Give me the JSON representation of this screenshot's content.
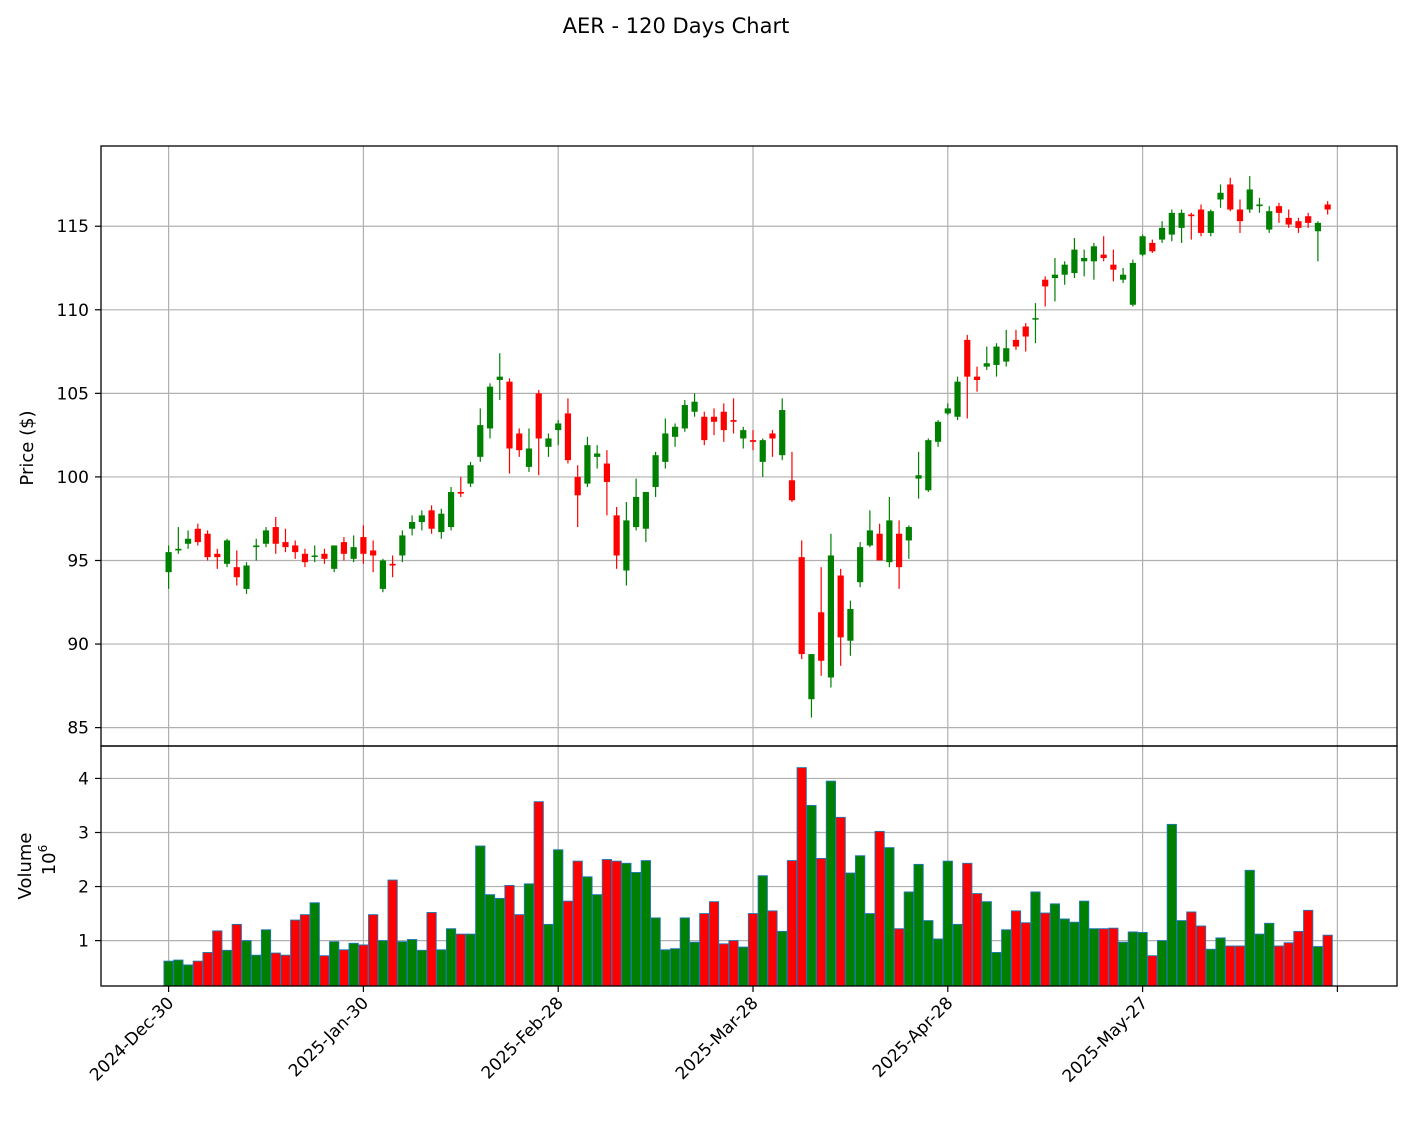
{
  "chart_data": {
    "type": "candlestick",
    "title": "AER - 120 Days Chart",
    "price_panel": {
      "ylabel": "Price ($)",
      "ylim": [
        83.9,
        119.8
      ],
      "yticks": [
        85,
        90,
        95,
        100,
        105,
        110,
        115
      ],
      "grid": true
    },
    "volume_panel": {
      "ylabel": "Volume",
      "scale_label": "10",
      "scale_exp": "6",
      "ylim": [
        0.16,
        4.6
      ],
      "yticks": [
        1,
        2,
        3,
        4
      ],
      "grid": true
    },
    "x_tick_labels": [
      {
        "index": 0,
        "label": "2024-Dec-30"
      },
      {
        "index": 20,
        "label": "2025-Jan-30"
      },
      {
        "index": 40,
        "label": "2025-Feb-28"
      },
      {
        "index": 60,
        "label": "2025-Mar-28"
      },
      {
        "index": 80,
        "label": "2025-Apr-28"
      },
      {
        "index": 100,
        "label": "2025-May-27"
      },
      {
        "index": 120,
        "label": ""
      }
    ],
    "colors": {
      "up": "#008000",
      "down": "#ff0000",
      "volume_edge": "#1f77b4",
      "grid": "#b0b0b0"
    },
    "ohlc": [
      [
        94.3,
        95.9,
        93.3,
        95.5
      ],
      [
        95.6,
        97.0,
        95.4,
        95.7
      ],
      [
        96.0,
        96.8,
        95.7,
        96.3
      ],
      [
        96.9,
        97.2,
        95.9,
        96.1
      ],
      [
        96.6,
        96.8,
        95.0,
        95.2
      ],
      [
        95.4,
        95.7,
        94.5,
        95.2
      ],
      [
        94.8,
        96.3,
        94.6,
        96.2
      ],
      [
        94.6,
        95.6,
        93.5,
        94.0
      ],
      [
        93.3,
        94.9,
        93.0,
        94.7
      ],
      [
        95.8,
        96.3,
        95.0,
        95.9
      ],
      [
        96.0,
        97.0,
        95.8,
        96.8
      ],
      [
        97.0,
        97.6,
        95.4,
        96.0
      ],
      [
        96.1,
        96.9,
        95.5,
        95.8
      ],
      [
        95.9,
        96.2,
        95.1,
        95.5
      ],
      [
        95.4,
        95.7,
        94.6,
        94.9
      ],
      [
        95.3,
        95.9,
        94.9,
        95.3
      ],
      [
        95.4,
        95.7,
        94.8,
        95.1
      ],
      [
        94.5,
        95.6,
        94.3,
        95.9
      ],
      [
        96.1,
        96.4,
        95.0,
        95.4
      ],
      [
        95.1,
        96.5,
        94.9,
        95.8
      ],
      [
        96.4,
        97.1,
        94.8,
        95.4
      ],
      [
        95.6,
        96.2,
        94.3,
        95.3
      ],
      [
        93.3,
        95.1,
        93.1,
        95.0
      ],
      [
        94.8,
        95.3,
        94.0,
        94.7
      ],
      [
        95.3,
        96.8,
        94.9,
        96.5
      ],
      [
        96.9,
        97.7,
        96.5,
        97.3
      ],
      [
        97.3,
        98.0,
        96.8,
        97.7
      ],
      [
        98.0,
        98.3,
        96.6,
        96.9
      ],
      [
        96.7,
        98.1,
        96.3,
        97.8
      ],
      [
        97.0,
        99.4,
        96.8,
        99.1
      ],
      [
        99.1,
        100.0,
        98.8,
        99.0
      ],
      [
        99.6,
        100.9,
        99.4,
        100.7
      ],
      [
        101.2,
        104.1,
        100.9,
        103.1
      ],
      [
        102.9,
        105.6,
        102.3,
        105.4
      ],
      [
        105.8,
        107.4,
        104.6,
        106.0
      ],
      [
        105.7,
        105.9,
        100.2,
        101.7
      ],
      [
        102.6,
        102.9,
        101.2,
        101.6
      ],
      [
        100.6,
        102.9,
        100.3,
        101.7
      ],
      [
        105.0,
        105.2,
        100.1,
        102.3
      ],
      [
        101.8,
        102.6,
        101.2,
        102.3
      ],
      [
        102.8,
        103.4,
        101.9,
        103.2
      ],
      [
        103.8,
        104.7,
        100.8,
        101.0
      ],
      [
        100.0,
        100.7,
        97.0,
        98.9
      ],
      [
        99.6,
        102.4,
        99.4,
        101.9
      ],
      [
        101.2,
        101.9,
        100.5,
        101.4
      ],
      [
        100.8,
        101.6,
        97.7,
        99.7
      ],
      [
        97.7,
        98.2,
        94.5,
        95.3
      ],
      [
        94.4,
        98.5,
        93.5,
        97.4
      ],
      [
        97.0,
        99.9,
        96.8,
        98.8
      ],
      [
        96.9,
        99.0,
        96.1,
        99.1
      ],
      [
        99.4,
        101.5,
        98.8,
        101.3
      ],
      [
        100.9,
        103.5,
        100.5,
        102.6
      ],
      [
        102.4,
        103.2,
        101.8,
        103.0
      ],
      [
        102.9,
        104.6,
        102.7,
        104.3
      ],
      [
        103.9,
        105.0,
        103.6,
        104.5
      ],
      [
        103.6,
        103.9,
        101.9,
        102.2
      ],
      [
        103.6,
        104.1,
        102.5,
        103.3
      ],
      [
        103.9,
        104.4,
        102.1,
        102.8
      ],
      [
        103.4,
        104.7,
        102.6,
        103.3
      ],
      [
        102.3,
        103.0,
        101.7,
        102.8
      ],
      [
        102.2,
        102.8,
        101.6,
        102.1
      ],
      [
        100.9,
        102.3,
        100.0,
        102.2
      ],
      [
        102.6,
        102.8,
        101.2,
        102.3
      ],
      [
        101.3,
        104.7,
        101.0,
        104.0
      ],
      [
        99.8,
        101.5,
        98.5,
        98.6
      ],
      [
        95.2,
        96.2,
        89.1,
        89.4
      ],
      [
        86.7,
        89.4,
        85.6,
        89.4
      ],
      [
        91.9,
        94.6,
        88.1,
        89.0
      ],
      [
        88.0,
        96.6,
        87.4,
        95.3
      ],
      [
        94.1,
        94.5,
        88.7,
        90.4
      ],
      [
        90.2,
        92.6,
        89.3,
        92.1
      ],
      [
        93.7,
        96.1,
        93.4,
        95.8
      ],
      [
        95.9,
        98.0,
        95.8,
        96.8
      ],
      [
        96.6,
        97.2,
        95.2,
        95.0
      ],
      [
        94.9,
        98.8,
        94.6,
        97.4
      ],
      [
        96.6,
        97.4,
        93.3,
        94.6
      ],
      [
        96.2,
        97.1,
        95.1,
        97.0
      ],
      [
        99.9,
        101.5,
        98.7,
        100.1
      ],
      [
        99.2,
        102.3,
        99.1,
        102.2
      ],
      [
        102.1,
        103.4,
        101.8,
        103.3
      ],
      [
        103.8,
        104.4,
        103.7,
        104.1
      ],
      [
        103.6,
        106.0,
        103.4,
        105.7
      ],
      [
        108.2,
        108.5,
        103.5,
        106.0
      ],
      [
        106.0,
        106.6,
        105.1,
        105.8
      ],
      [
        106.6,
        107.8,
        106.4,
        106.8
      ],
      [
        106.7,
        108.0,
        106.0,
        107.8
      ],
      [
        106.9,
        108.8,
        106.6,
        107.7
      ],
      [
        108.2,
        108.8,
        107.6,
        107.8
      ],
      [
        109.0,
        109.2,
        107.5,
        108.4
      ],
      [
        109.5,
        110.4,
        108.0,
        109.5
      ],
      [
        111.8,
        112.0,
        110.2,
        111.4
      ],
      [
        111.9,
        113.1,
        110.5,
        112.1
      ],
      [
        112.1,
        112.9,
        111.5,
        112.7
      ],
      [
        112.2,
        114.3,
        111.9,
        113.6
      ],
      [
        112.9,
        113.6,
        112.0,
        113.1
      ],
      [
        112.9,
        114.0,
        111.8,
        113.8
      ],
      [
        113.3,
        114.4,
        112.9,
        113.1
      ],
      [
        112.7,
        113.6,
        111.7,
        112.4
      ],
      [
        111.8,
        112.5,
        111.6,
        112.1
      ],
      [
        110.3,
        113.0,
        110.2,
        112.8
      ],
      [
        113.3,
        114.5,
        113.2,
        114.4
      ],
      [
        114.0,
        114.2,
        113.4,
        113.5
      ],
      [
        114.2,
        115.3,
        114.0,
        114.9
      ],
      [
        114.5,
        116.0,
        114.1,
        115.8
      ],
      [
        114.9,
        116.0,
        114.0,
        115.8
      ],
      [
        115.7,
        115.8,
        114.2,
        115.6
      ],
      [
        116.0,
        116.3,
        114.4,
        114.6
      ],
      [
        114.6,
        116.0,
        114.4,
        115.9
      ],
      [
        116.6,
        117.5,
        116.1,
        117.0
      ],
      [
        117.5,
        117.9,
        115.9,
        116.0
      ],
      [
        116.0,
        116.6,
        114.6,
        115.3
      ],
      [
        116.0,
        118.0,
        115.8,
        117.2
      ],
      [
        116.2,
        116.7,
        115.8,
        116.3
      ],
      [
        114.8,
        116.2,
        114.6,
        115.9
      ],
      [
        116.2,
        116.4,
        115.2,
        115.8
      ],
      [
        115.5,
        116.0,
        114.9,
        115.1
      ],
      [
        115.3,
        115.5,
        114.6,
        114.9
      ],
      [
        115.6,
        115.8,
        114.9,
        115.2
      ],
      [
        114.7,
        115.3,
        112.9,
        115.2
      ],
      [
        116.3,
        116.5,
        115.7,
        116.0
      ]
    ],
    "volume": [
      0.62,
      0.64,
      0.55,
      0.62,
      0.78,
      1.18,
      0.82,
      1.3,
      1.0,
      0.73,
      1.2,
      0.77,
      0.73,
      1.38,
      1.48,
      1.7,
      0.72,
      0.98,
      0.83,
      0.95,
      0.92,
      1.48,
      1.0,
      2.12,
      0.98,
      1.02,
      0.82,
      1.52,
      0.83,
      1.22,
      1.12,
      1.12,
      2.75,
      1.85,
      1.78,
      2.02,
      1.48,
      2.05,
      3.57,
      1.3,
      2.68,
      1.73,
      2.47,
      2.18,
      1.85,
      2.5,
      2.47,
      2.43,
      2.26,
      2.48,
      1.42,
      0.83,
      0.85,
      1.42,
      0.97,
      1.5,
      1.72,
      0.94,
      1.0,
      0.88,
      1.5,
      2.2,
      1.55,
      1.17,
      2.48,
      4.2,
      3.5,
      2.52,
      3.95,
      3.28,
      2.25,
      2.57,
      1.5,
      3.02,
      2.72,
      1.22,
      1.9,
      2.41,
      1.37,
      1.03,
      2.47,
      1.3,
      2.43,
      1.87,
      1.72,
      0.78,
      1.2,
      1.55,
      1.33,
      1.9,
      1.51,
      1.68,
      1.4,
      1.34,
      1.73,
      1.22,
      1.22,
      1.23,
      0.97,
      1.16,
      1.15,
      0.72,
      1.0,
      3.15,
      1.37,
      1.53,
      1.27,
      0.84,
      1.05,
      0.9,
      0.9,
      2.3,
      1.12,
      1.32,
      0.9,
      0.96,
      1.17,
      1.56,
      0.89,
      1.1
    ]
  }
}
